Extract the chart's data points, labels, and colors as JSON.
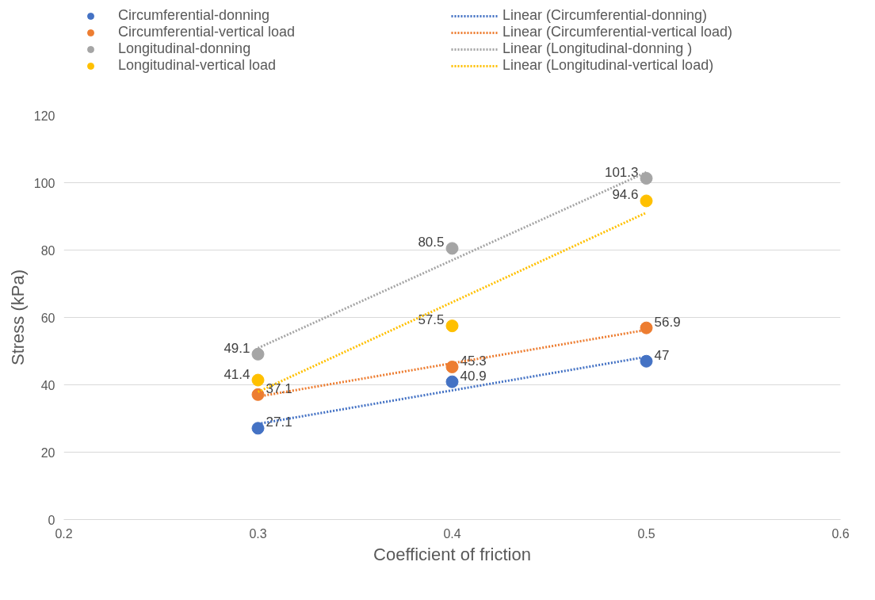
{
  "chart_data": {
    "type": "scatter",
    "xlabel": "Coefficient of friction",
    "ylabel": "Stress (kPa)",
    "xlim": [
      0.2,
      0.6
    ],
    "xticks": [
      0.2,
      0.3,
      0.4,
      0.5,
      0.6
    ],
    "ylim": [
      0,
      120
    ],
    "yticks": [
      0,
      20,
      40,
      60,
      80,
      100,
      120
    ],
    "grid": "y",
    "legend": "top",
    "marker": "circle",
    "series": [
      {
        "name": "Circumferential-donning",
        "color": "#4472c4",
        "x": [
          0.3,
          0.4,
          0.5
        ],
        "values": [
          27.1,
          40.9,
          47
        ],
        "data_labels": true
      },
      {
        "name": "Circumferential-vertical load",
        "color": "#ed7d31",
        "x": [
          0.3,
          0.4,
          0.5
        ],
        "values": [
          37.1,
          45.3,
          56.9
        ],
        "data_labels": true
      },
      {
        "name": "Longitudinal-donning",
        "color": "#a5a5a5",
        "x": [
          0.3,
          0.4,
          0.5
        ],
        "values": [
          49.1,
          80.5,
          101.3
        ],
        "data_labels": true
      },
      {
        "name": "Longitudinal-vertical load",
        "color": "#ffc000",
        "x": [
          0.3,
          0.4,
          0.5
        ],
        "values": [
          41.4,
          57.5,
          94.6
        ],
        "data_labels": true
      },
      {
        "name": "Linear (Circumferential-donning)",
        "type": "line",
        "line_style": "dotted",
        "marker": "none",
        "color": "#4472c4",
        "x": [
          0.3,
          0.5
        ],
        "values": [
          28.4,
          48.3
        ]
      },
      {
        "name": "Linear (Circumferential-vertical load)",
        "type": "line",
        "line_style": "dotted",
        "marker": "none",
        "color": "#ed7d31",
        "x": [
          0.3,
          0.5
        ],
        "values": [
          36.5,
          56.3
        ]
      },
      {
        "name": "Linear (Longitudinal-donning )",
        "type": "line",
        "line_style": "dotted",
        "marker": "none",
        "color": "#a5a5a5",
        "x": [
          0.3,
          0.5
        ],
        "values": [
          50.9,
          103.1
        ]
      },
      {
        "name": "Linear (Longitudinal-vertical load)",
        "type": "line",
        "line_style": "dotted",
        "marker": "none",
        "color": "#ffc000",
        "x": [
          0.3,
          0.5
        ],
        "values": [
          37.9,
          91.1
        ]
      }
    ]
  }
}
